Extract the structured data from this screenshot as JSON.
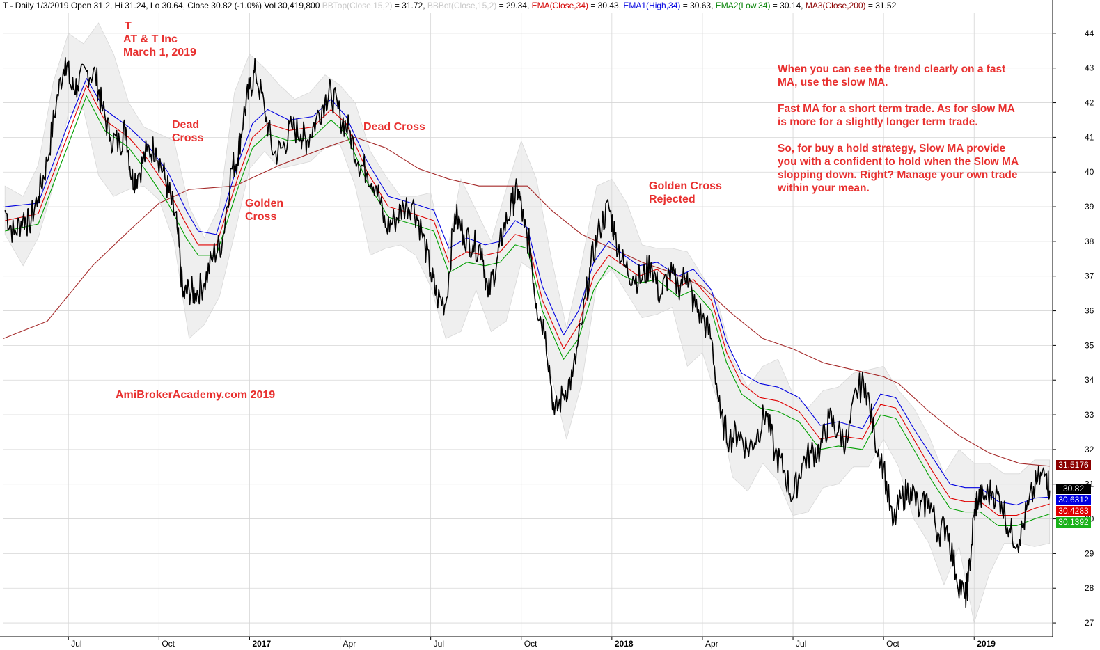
{
  "header": {
    "prefix": "T - Daily 1/3/2019 Open 31.2, Hi 31.24, Lo 30.64, Close 30.82 (-1.0%) Vol 30,419,800",
    "bbtop": "BBTop(Close,15,2)",
    "bbtop_val": " = 31.72, ",
    "bbbot": "BBBot(Close,15,2)",
    "bbbot_val": " = 29.34, ",
    "ema": "EMA(Close,34)",
    "ema_val": " = 30.43, ",
    "ema1": "EMA1(High,34)",
    "ema1_val": " = 30.63, ",
    "ema2": "EMA2(Low,34)",
    "ema2_val": " = 30.14, ",
    "ma3": "MA3(Close,200)",
    "ma3_val": " = 31.52"
  },
  "annotations": {
    "ticker": "T",
    "company": "AT & T Inc",
    "date": "March 1, 2019",
    "dead_cross_1_a": "Dead",
    "dead_cross_1_b": "Cross",
    "golden_cross_1_a": "Golden",
    "golden_cross_1_b": "Cross",
    "dead_cross_2": "Dead Cross",
    "golden_rejected_a": "Golden Cross",
    "golden_rejected_b": "Rejected",
    "watermark": "AmiBrokerAcademy.com  2019",
    "note_lines": [
      "When you can see the trend clearly on a fast",
      "MA, use the slow MA.",
      "",
      "Fast MA for a short term trade. As for slow MA",
      "is more for a slightly longer term trade.",
      "",
      "So, for buy a hold strategy, Slow MA provide",
      "you with a confident to hold when the Slow MA",
      "slopping down. Right? Manage your own trade",
      "within your mean."
    ]
  },
  "price_labels": {
    "ma3": "31.5176",
    "close": "30.82",
    "ema1": "30.6312",
    "ema": "30.4283",
    "ema2": "30.1392"
  },
  "colors": {
    "price": "#000000",
    "ema": "#e00000",
    "ema1": "#0000e0",
    "ema2": "#00a000",
    "ma3": "#a52a2a",
    "bands": "#e6e6e6",
    "annotation": "#e8302f"
  },
  "chart_data": {
    "type": "line",
    "title": "T - Daily 1/3/2019",
    "y_ticks": [
      27,
      28,
      29,
      30,
      31,
      32,
      33,
      34,
      35,
      36,
      37,
      38,
      39,
      40,
      41,
      42,
      43,
      44
    ],
    "ylim": [
      26.6,
      44.6
    ],
    "x_ticks": [
      "Jul",
      "Oct",
      "2017",
      "Apr",
      "Jul",
      "Oct",
      "2018",
      "Apr",
      "Jul",
      "Oct",
      "2019"
    ],
    "x_tick_positions_months": [
      1,
      4,
      7,
      10,
      13,
      16,
      19,
      22,
      25,
      28,
      31
    ],
    "x_range_months": [
      -1.15,
      33.6
    ],
    "series": [
      {
        "name": "Close",
        "x_months": [
          -1.1,
          -0.8,
          -0.5,
          -0.3,
          0.0,
          0.3,
          0.6,
          0.9,
          1.1,
          1.3,
          1.6,
          1.9,
          2.1,
          2.4,
          2.7,
          2.9,
          3.1,
          3.3,
          3.6,
          3.9,
          4.2,
          4.4,
          4.6,
          4.8,
          5.0,
          5.2,
          5.5,
          5.8,
          6.1,
          6.4,
          6.6,
          6.8,
          7.0,
          7.2,
          7.5,
          7.8,
          8.1,
          8.4,
          8.7,
          8.9,
          9.2,
          9.5,
          9.7,
          10.0,
          10.3,
          10.6,
          10.9,
          11.2,
          11.5,
          11.8,
          12.1,
          12.4,
          12.7,
          13.0,
          13.2,
          13.5,
          13.8,
          14.1,
          14.4,
          14.7,
          14.9,
          15.2,
          15.4,
          15.7,
          15.9,
          16.1,
          16.3,
          16.5,
          16.8,
          17.1,
          17.4,
          17.7,
          18.0,
          18.3,
          18.6,
          18.9,
          19.1,
          19.4,
          19.7,
          20.0,
          20.3,
          20.6,
          20.9,
          21.2,
          21.5,
          21.7,
          22.0,
          22.3,
          22.6,
          22.9,
          23.2,
          23.5,
          23.8,
          24.1,
          24.4,
          24.7,
          25.0,
          25.3,
          25.6,
          25.9,
          26.2,
          26.5,
          26.8,
          27.1,
          27.4,
          27.7,
          28.0,
          28.3,
          28.6,
          28.9,
          29.2,
          29.5,
          29.8,
          30.1,
          30.4,
          30.7,
          30.8,
          31.0,
          31.1,
          31.3,
          31.6,
          31.9,
          32.2,
          32.5,
          32.8,
          33.1,
          33.4,
          33.5
        ],
        "values": [
          38.9,
          38.2,
          38.7,
          38.5,
          39.3,
          40.3,
          42.0,
          43.3,
          42.4,
          42.5,
          42.9,
          42.8,
          41.9,
          41.0,
          40.8,
          41.3,
          39.8,
          39.9,
          40.6,
          40.7,
          39.8,
          39.2,
          38.4,
          36.4,
          36.6,
          36.5,
          36.8,
          37.6,
          38.0,
          40.1,
          40.4,
          41.6,
          42.4,
          42.9,
          41.8,
          40.5,
          40.7,
          41.3,
          41.1,
          40.9,
          41.5,
          42.1,
          42.3,
          41.6,
          41.2,
          40.3,
          40.0,
          39.6,
          38.4,
          38.6,
          39.0,
          39.1,
          38.3,
          37.1,
          36.4,
          36.2,
          38.8,
          38.2,
          37.9,
          37.8,
          36.4,
          37.5,
          38.3,
          39.1,
          39.5,
          38.4,
          37.8,
          36.2,
          35.4,
          33.0,
          33.6,
          34.1,
          35.6,
          37.3,
          38.4,
          39.0,
          38.2,
          37.3,
          37.0,
          36.9,
          37.4,
          36.4,
          37.1,
          36.7,
          37.1,
          36.2,
          35.8,
          35.2,
          32.9,
          32.3,
          32.5,
          32.0,
          32.4,
          33.1,
          31.9,
          31.4,
          30.6,
          31.6,
          31.9,
          32.0,
          32.9,
          32.5,
          32.2,
          33.7,
          33.9,
          32.4,
          31.5,
          29.8,
          30.6,
          30.9,
          30.2,
          30.6,
          29.6,
          29.8,
          28.4,
          27.7,
          28.2,
          30.1,
          30.6,
          30.6,
          30.8,
          30.5,
          29.6,
          29.4,
          30.4,
          31.1,
          31.3,
          30.82
        ],
        "color": "#000000"
      },
      {
        "name": "EMA1(High,34)",
        "x_months": [
          -1.1,
          0.0,
          1.0,
          1.6,
          2.2,
          3.0,
          3.6,
          4.3,
          4.9,
          5.3,
          5.9,
          6.6,
          7.1,
          7.6,
          8.3,
          9.1,
          9.7,
          10.2,
          10.9,
          11.6,
          12.4,
          13.1,
          13.6,
          14.2,
          14.8,
          15.3,
          15.8,
          16.2,
          16.7,
          17.4,
          17.9,
          18.4,
          18.9,
          19.4,
          19.9,
          20.5,
          21.2,
          21.7,
          22.3,
          22.8,
          23.3,
          23.9,
          24.5,
          25.2,
          25.9,
          26.5,
          27.3,
          27.9,
          28.4,
          29.0,
          29.6,
          30.2,
          30.7,
          31.2,
          31.8,
          32.4,
          33.0,
          33.5
        ],
        "values": [
          39.0,
          39.1,
          41.4,
          42.7,
          41.8,
          41.3,
          40.8,
          40.0,
          38.9,
          38.3,
          38.2,
          40.2,
          41.4,
          41.8,
          41.5,
          41.6,
          42.1,
          41.6,
          40.3,
          39.3,
          39.1,
          38.9,
          37.8,
          38.1,
          37.9,
          38.0,
          38.6,
          38.4,
          36.7,
          35.3,
          36.0,
          37.4,
          38.0,
          37.6,
          37.3,
          37.4,
          37.0,
          37.2,
          36.6,
          35.1,
          34.2,
          33.9,
          33.8,
          33.5,
          32.7,
          32.8,
          32.6,
          33.6,
          33.5,
          32.6,
          31.8,
          31.0,
          30.9,
          30.9,
          30.5,
          30.4,
          30.6,
          30.63
        ],
        "color": "#0000e0"
      },
      {
        "name": "EMA(Close,34)",
        "x_months": [
          -1.1,
          0.0,
          1.0,
          1.6,
          2.2,
          3.0,
          3.6,
          4.3,
          4.9,
          5.3,
          5.9,
          6.6,
          7.1,
          7.6,
          8.3,
          9.1,
          9.7,
          10.2,
          10.9,
          11.6,
          12.4,
          13.1,
          13.6,
          14.2,
          14.8,
          15.3,
          15.8,
          16.2,
          16.7,
          17.4,
          17.9,
          18.4,
          18.9,
          19.4,
          19.9,
          20.5,
          21.2,
          21.7,
          22.3,
          22.8,
          23.3,
          23.9,
          24.5,
          25.2,
          25.9,
          26.5,
          27.3,
          27.9,
          28.4,
          29.0,
          29.6,
          30.2,
          30.7,
          31.2,
          31.8,
          32.4,
          33.0,
          33.5
        ],
        "values": [
          38.6,
          38.8,
          41.1,
          42.5,
          41.5,
          41.0,
          40.4,
          39.5,
          38.5,
          37.9,
          37.9,
          39.8,
          41.0,
          41.4,
          41.2,
          41.3,
          41.8,
          41.4,
          40.0,
          39.0,
          38.8,
          38.6,
          37.4,
          37.7,
          37.6,
          37.7,
          38.2,
          38.1,
          36.3,
          34.9,
          35.6,
          37.0,
          37.6,
          37.3,
          37.0,
          37.2,
          36.7,
          36.9,
          36.3,
          34.8,
          33.9,
          33.5,
          33.4,
          33.1,
          32.3,
          32.4,
          32.3,
          33.3,
          33.2,
          32.3,
          31.4,
          30.6,
          30.5,
          30.5,
          30.1,
          30.1,
          30.3,
          30.43
        ],
        "color": "#e00000"
      },
      {
        "name": "EMA2(Low,34)",
        "x_months": [
          -1.1,
          0.0,
          1.0,
          1.6,
          2.2,
          3.0,
          3.6,
          4.3,
          4.9,
          5.3,
          5.9,
          6.6,
          7.1,
          7.6,
          8.3,
          9.1,
          9.7,
          10.2,
          10.9,
          11.6,
          12.4,
          13.1,
          13.6,
          14.2,
          14.8,
          15.3,
          15.8,
          16.2,
          16.7,
          17.4,
          17.9,
          18.4,
          18.9,
          19.4,
          19.9,
          20.5,
          21.2,
          21.7,
          22.3,
          22.8,
          23.3,
          23.9,
          24.5,
          25.2,
          25.9,
          26.5,
          27.3,
          27.9,
          28.4,
          29.0,
          29.6,
          30.2,
          30.7,
          31.2,
          31.8,
          32.4,
          33.0,
          33.5
        ],
        "values": [
          38.3,
          38.5,
          40.8,
          42.2,
          41.2,
          40.7,
          40.0,
          39.1,
          38.1,
          37.6,
          37.6,
          39.5,
          40.7,
          41.1,
          40.9,
          41.0,
          41.5,
          41.1,
          39.7,
          38.7,
          38.5,
          38.3,
          37.1,
          37.4,
          37.3,
          37.4,
          37.9,
          37.8,
          36.0,
          34.6,
          35.2,
          36.6,
          37.3,
          37.0,
          36.8,
          36.9,
          36.4,
          36.6,
          36.0,
          34.5,
          33.6,
          33.2,
          33.1,
          32.8,
          32.0,
          32.1,
          32.0,
          33.0,
          32.9,
          32.0,
          31.1,
          30.3,
          30.2,
          30.2,
          29.8,
          29.8,
          30.0,
          30.14
        ],
        "color": "#00a000"
      },
      {
        "name": "MA3(Close,200)",
        "x_months": [
          -1.15,
          0.3,
          1.8,
          3.0,
          4.0,
          5.0,
          6.5,
          8.0,
          9.5,
          10.5,
          11.5,
          12.6,
          13.6,
          14.6,
          15.6,
          16.2,
          17.0,
          18.0,
          19.0,
          20.0,
          21.0,
          22.0,
          23.0,
          24.0,
          25.0,
          26.0,
          27.0,
          28.0,
          28.5,
          29.5,
          30.5,
          31.5,
          32.5,
          33.1,
          33.5
        ],
        "values": [
          35.2,
          35.7,
          37.3,
          38.3,
          39.1,
          39.5,
          39.6,
          40.2,
          40.7,
          41.0,
          40.7,
          40.1,
          39.8,
          39.6,
          39.6,
          39.6,
          38.9,
          38.2,
          37.8,
          37.4,
          37.1,
          36.7,
          35.9,
          35.2,
          34.9,
          34.5,
          34.3,
          34.1,
          33.9,
          33.1,
          32.4,
          31.9,
          31.6,
          31.55,
          31.52
        ],
        "color": "#a52a2a"
      }
    ],
    "bands": {
      "name": "Bollinger Bands (Close,15,2)",
      "x_months": [
        -1.1,
        -0.5,
        0.0,
        0.5,
        1.0,
        1.5,
        2.0,
        2.5,
        3.0,
        3.5,
        4.0,
        4.5,
        5.0,
        5.5,
        6.0,
        6.5,
        7.0,
        7.5,
        8.0,
        8.5,
        9.0,
        9.5,
        10.0,
        10.5,
        11.0,
        11.5,
        12.0,
        12.5,
        13.0,
        13.5,
        14.0,
        14.5,
        15.0,
        15.5,
        16.0,
        16.5,
        17.0,
        17.5,
        18.0,
        18.5,
        19.0,
        19.5,
        20.0,
        20.5,
        21.0,
        21.5,
        22.0,
        22.5,
        23.0,
        23.5,
        24.0,
        24.5,
        25.0,
        25.5,
        26.0,
        26.5,
        27.0,
        27.5,
        28.0,
        28.5,
        29.0,
        29.5,
        30.0,
        30.5,
        31.0,
        31.5,
        32.0,
        32.5,
        33.0,
        33.5
      ],
      "upper": [
        39.6,
        39.3,
        40.2,
        42.6,
        44.0,
        43.7,
        44.3,
        43.4,
        42.0,
        41.3,
        41.1,
        40.9,
        39.0,
        38.1,
        39.0,
        42.3,
        43.4,
        43.0,
        42.5,
        42.1,
        42.3,
        42.8,
        42.5,
        42.0,
        40.6,
        39.9,
        39.3,
        39.3,
        39.4,
        37.5,
        39.8,
        38.9,
        38.0,
        39.5,
        40.9,
        39.8,
        37.5,
        35.5,
        37.4,
        39.6,
        39.8,
        39.1,
        37.9,
        37.8,
        37.8,
        37.7,
        37.0,
        36.3,
        34.6,
        33.8,
        34.4,
        34.6,
        33.6,
        33.2,
        33.7,
        33.8,
        34.2,
        34.3,
        34.4,
        33.7,
        33.2,
        32.4,
        31.3,
        32.0,
        31.6,
        31.6,
        31.3,
        31.3,
        31.7,
        31.7
      ],
      "lower": [
        38.2,
        37.3,
        38.1,
        39.6,
        41.7,
        41.8,
        39.9,
        39.3,
        39.5,
        39.6,
        39.2,
        38.0,
        35.2,
        35.6,
        36.4,
        38.2,
        40.1,
        40.6,
        40.1,
        40.2,
        40.3,
        40.7,
        40.8,
        39.6,
        37.6,
        37.8,
        37.9,
        37.6,
        36.7,
        35.2,
        35.4,
        36.6,
        35.4,
        35.7,
        37.4,
        37.1,
        34.1,
        32.3,
        33.9,
        36.8,
        37.2,
        36.5,
        35.8,
        35.9,
        36.1,
        34.4,
        34.8,
        33.4,
        31.2,
        30.8,
        31.6,
        31.1,
        30.1,
        30.2,
        30.9,
        31.0,
        31.5,
        31.5,
        32.3,
        31.5,
        30.0,
        29.3,
        28.1,
        29.2,
        27.0,
        28.4,
        29.3,
        29.3,
        29.2,
        29.3
      ],
      "color": "#e6e6e6"
    }
  }
}
